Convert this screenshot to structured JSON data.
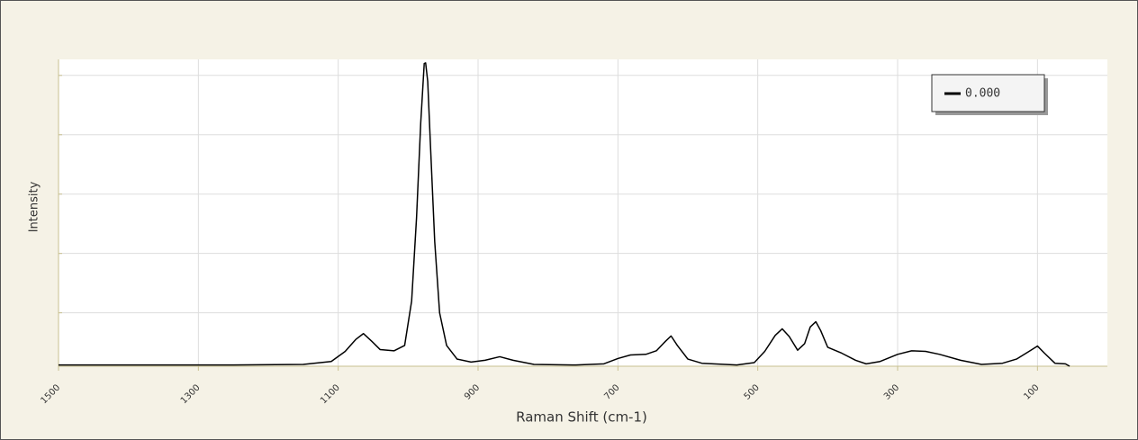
{
  "chart_data": {
    "type": "line",
    "x_label": "Raman Shift (cm-1)",
    "y_label": "Intensity",
    "x": [
      1500,
      1250,
      1150,
      1110,
      1090,
      1075,
      1064,
      1052,
      1040,
      1020,
      1005,
      995,
      988,
      982,
      977,
      975,
      972,
      968,
      962,
      955,
      945,
      930,
      910,
      890,
      869,
      850,
      820,
      760,
      720,
      700,
      682,
      660,
      645,
      632,
      624,
      615,
      600,
      580,
      530,
      505,
      490,
      475,
      465,
      455,
      443,
      433,
      425,
      417,
      410,
      400,
      380,
      360,
      345,
      325,
      300,
      280,
      260,
      240,
      210,
      180,
      150,
      130,
      112,
      100,
      90,
      75,
      60,
      54
    ],
    "series": [
      {
        "name": "0.000",
        "color": "#000000",
        "values": [
          0.12,
          0.12,
          0.13,
          0.18,
          0.35,
          0.55,
          0.65,
          0.52,
          0.38,
          0.36,
          0.45,
          1.2,
          2.6,
          4.2,
          5.2,
          5.21,
          4.9,
          3.8,
          2.2,
          1.0,
          0.45,
          0.22,
          0.17,
          0.2,
          0.26,
          0.2,
          0.13,
          0.12,
          0.14,
          0.23,
          0.29,
          0.3,
          0.36,
          0.52,
          0.61,
          0.45,
          0.22,
          0.15,
          0.12,
          0.16,
          0.35,
          0.62,
          0.73,
          0.6,
          0.37,
          0.48,
          0.76,
          0.85,
          0.7,
          0.42,
          0.32,
          0.2,
          0.14,
          0.18,
          0.3,
          0.36,
          0.35,
          0.3,
          0.2,
          0.13,
          0.15,
          0.22,
          0.35,
          0.44,
          0.32,
          0.15,
          0.14,
          0.1
        ]
      }
    ],
    "xlim": [
      1500,
      0
    ],
    "xticks": [
      1500,
      1300,
      1100,
      900,
      700,
      500,
      300,
      100
    ],
    "ylim": [
      0.1,
      5.27
    ],
    "yticks": [
      1,
      2,
      3,
      4,
      5
    ],
    "grid": true,
    "legend": "upper right"
  }
}
